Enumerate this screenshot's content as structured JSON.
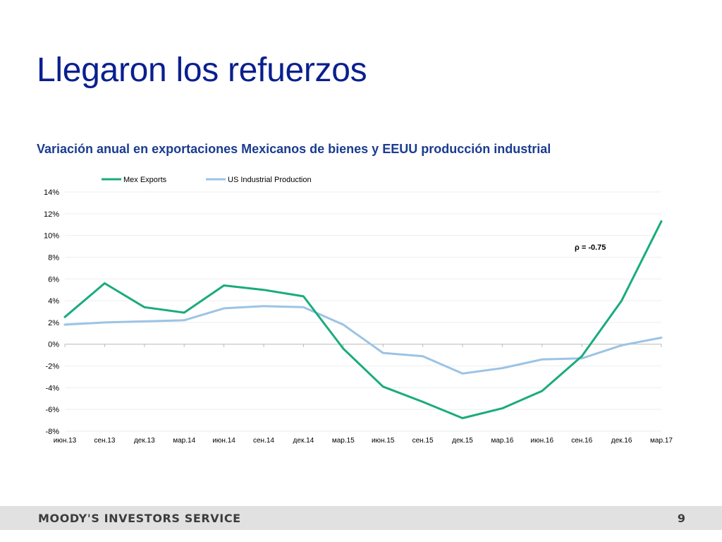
{
  "slide": {
    "title": "Llegaron los refuerzos",
    "subtitle": "Variación anual en exportaciones Mexicanos de bienes y EEUU producción industrial",
    "footer_brand": "MOODY'S INVESTORS SERVICE",
    "page_number": "9"
  },
  "colors": {
    "title": "#0a1f8f",
    "subtitle": "#1a3c8f",
    "mex_exports": "#1aab7e",
    "us_industrial": "#9cc3e5",
    "footer_bg": "#e1e1e1"
  },
  "chart_data": {
    "type": "line",
    "title": "",
    "xlabel": "",
    "ylabel": "",
    "ylim": [
      -8,
      14
    ],
    "yticks": [
      14,
      12,
      10,
      8,
      6,
      4,
      2,
      0,
      -2,
      -4,
      -6,
      -8
    ],
    "ytick_labels": [
      "14%",
      "12%",
      "10%",
      "8%",
      "6%",
      "4%",
      "2%",
      "0%",
      "-2%",
      "-4%",
      "-6%",
      "-8%"
    ],
    "grid": true,
    "legend_position": "top-left",
    "categories": [
      "июн.13",
      "сен.13",
      "дек.13",
      "мар.14",
      "июн.14",
      "сен.14",
      "дек.14",
      "мар.15",
      "июн.15",
      "сен.15",
      "дек.15",
      "мар.16",
      "июн.16",
      "сен.16",
      "дек.16",
      "мар.17"
    ],
    "series": [
      {
        "name": "Mex Exports",
        "color": "#1aab7e",
        "values": [
          2.5,
          5.6,
          3.4,
          2.9,
          5.4,
          5.0,
          4.4,
          -0.4,
          -3.9,
          -5.3,
          -6.8,
          -5.9,
          -4.3,
          -1.1,
          4.0,
          11.3
        ]
      },
      {
        "name": "US Industrial Production",
        "color": "#9cc3e5",
        "values": [
          1.8,
          2.0,
          2.1,
          2.2,
          3.3,
          3.5,
          3.4,
          1.8,
          -0.8,
          -1.1,
          -2.7,
          -2.2,
          -1.4,
          -1.3,
          -0.1,
          0.6
        ]
      }
    ],
    "annotation": "ρ = -0.75"
  }
}
